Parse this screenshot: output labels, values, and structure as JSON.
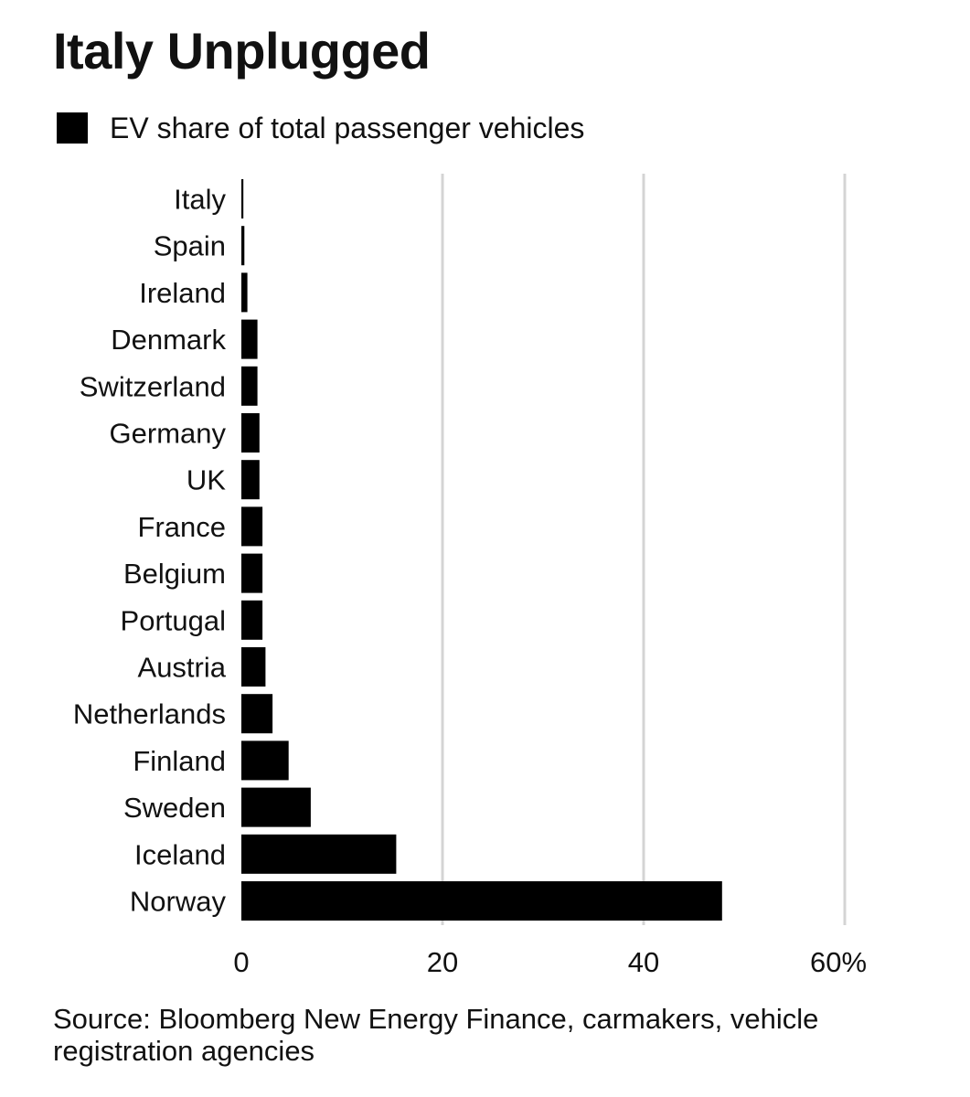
{
  "header": {
    "title": "Italy Unplugged"
  },
  "legend": {
    "label": "EV share of total passenger vehicles",
    "color": "#000000"
  },
  "chart_data": {
    "type": "bar",
    "orientation": "horizontal",
    "title": "Italy Unplugged",
    "xlabel": "",
    "ylabel": "",
    "xlim": [
      0,
      60
    ],
    "x_ticks": [
      "0",
      "20",
      "40",
      "60%"
    ],
    "grid": true,
    "legend_position": "top-left",
    "categories": [
      "Italy",
      "Spain",
      "Ireland",
      "Denmark",
      "Switzerland",
      "Germany",
      "UK",
      "France",
      "Belgium",
      "Portugal",
      "Austria",
      "Netherlands",
      "Finland",
      "Sweden",
      "Iceland",
      "Norway"
    ],
    "series": [
      {
        "name": "EV share of total passenger vehicles",
        "color": "#000000",
        "values": [
          0.2,
          0.3,
          0.6,
          1.6,
          1.6,
          1.8,
          1.8,
          2.1,
          2.1,
          2.1,
          2.4,
          3.1,
          4.7,
          6.9,
          15.4,
          47.8
        ]
      }
    ]
  },
  "footer": {
    "source": "Source: Bloomberg New Energy Finance, carmakers, vehicle registration agencies"
  }
}
